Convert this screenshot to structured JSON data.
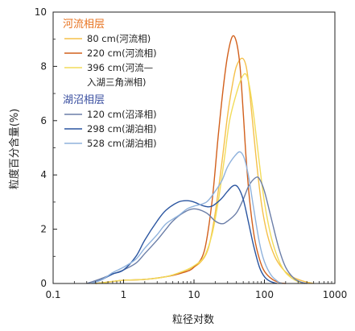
{
  "chart_data": {
    "type": "line",
    "xlabel": "粒径对数",
    "ylabel": "粒度百分含量(%)",
    "x_scale": "log",
    "xlim": [
      0.1,
      1000
    ],
    "ylim": [
      0,
      10
    ],
    "x_ticks": [
      "0.1",
      "1",
      "10",
      "100",
      "1000"
    ],
    "y_ticks": [
      "0",
      "2",
      "4",
      "6",
      "8",
      "10"
    ],
    "grid": false,
    "legend_position": "top-left",
    "legend_groups": [
      {
        "title": "河流相层",
        "color": "#E8731F"
      },
      {
        "title": "湖沼相层",
        "color": "#3A4FA0"
      }
    ],
    "series": [
      {
        "name": "80 cm(河流相)",
        "group": 0,
        "color": "#F5C04A",
        "points": [
          [
            0.4,
            0
          ],
          [
            0.6,
            0.05
          ],
          [
            1,
            0.12
          ],
          [
            2,
            0.15
          ],
          [
            5,
            0.3
          ],
          [
            8,
            0.5
          ],
          [
            12,
            0.75
          ],
          [
            16,
            1.3
          ],
          [
            20,
            2.6
          ],
          [
            25,
            4.5
          ],
          [
            30,
            6.2
          ],
          [
            35,
            7.3
          ],
          [
            40,
            8.0
          ],
          [
            48,
            8.3
          ],
          [
            55,
            8.0
          ],
          [
            62,
            7.0
          ],
          [
            75,
            4.8
          ],
          [
            90,
            3.0
          ],
          [
            110,
            1.8
          ],
          [
            140,
            1.0
          ],
          [
            180,
            0.55
          ],
          [
            230,
            0.3
          ],
          [
            300,
            0.15
          ],
          [
            400,
            0.05
          ],
          [
            500,
            0
          ]
        ]
      },
      {
        "name": "220 cm(河流相)",
        "group": 0,
        "color": "#D2601C",
        "points": [
          [
            0.4,
            0
          ],
          [
            0.6,
            0.05
          ],
          [
            1,
            0.12
          ],
          [
            2,
            0.15
          ],
          [
            4,
            0.25
          ],
          [
            7,
            0.4
          ],
          [
            10,
            0.6
          ],
          [
            14,
            1.2
          ],
          [
            18,
            3.0
          ],
          [
            22,
            5.4
          ],
          [
            26,
            7.2
          ],
          [
            30,
            8.4
          ],
          [
            35,
            9.1
          ],
          [
            40,
            8.9
          ],
          [
            45,
            8.0
          ],
          [
            50,
            6.3
          ],
          [
            55,
            4.6
          ],
          [
            62,
            3.0
          ],
          [
            72,
            1.7
          ],
          [
            85,
            0.9
          ],
          [
            100,
            0.45
          ],
          [
            130,
            0.15
          ],
          [
            170,
            0.02
          ],
          [
            200,
            0
          ]
        ]
      },
      {
        "name": "396 cm(河流—入湖三角洲相)",
        "group": 0,
        "color": "#F2DC5A",
        "points": [
          [
            0.4,
            0
          ],
          [
            0.6,
            0.05
          ],
          [
            1,
            0.12
          ],
          [
            2,
            0.15
          ],
          [
            4,
            0.25
          ],
          [
            7,
            0.45
          ],
          [
            10,
            0.65
          ],
          [
            14,
            1.0
          ],
          [
            18,
            1.8
          ],
          [
            22,
            3.0
          ],
          [
            27,
            4.6
          ],
          [
            32,
            6.0
          ],
          [
            40,
            7.0
          ],
          [
            48,
            7.6
          ],
          [
            55,
            7.7
          ],
          [
            62,
            7.2
          ],
          [
            72,
            6.0
          ],
          [
            85,
            4.4
          ],
          [
            100,
            3.0
          ],
          [
            125,
            1.7
          ],
          [
            160,
            0.85
          ],
          [
            200,
            0.4
          ],
          [
            260,
            0.15
          ],
          [
            330,
            0.03
          ],
          [
            380,
            0
          ]
        ]
      },
      {
        "name": "120 cm(沼泽相)",
        "group": 1,
        "color": "#6B7EA8",
        "points": [
          [
            0.3,
            0
          ],
          [
            0.45,
            0.15
          ],
          [
            0.7,
            0.35
          ],
          [
            1,
            0.5
          ],
          [
            1.5,
            0.75
          ],
          [
            2,
            1.1
          ],
          [
            3,
            1.6
          ],
          [
            4,
            2.0
          ],
          [
            5,
            2.3
          ],
          [
            7,
            2.6
          ],
          [
            10,
            2.75
          ],
          [
            15,
            2.6
          ],
          [
            20,
            2.3
          ],
          [
            25,
            2.2
          ],
          [
            30,
            2.3
          ],
          [
            40,
            2.6
          ],
          [
            50,
            3.1
          ],
          [
            60,
            3.6
          ],
          [
            75,
            3.9
          ],
          [
            85,
            3.85
          ],
          [
            100,
            3.4
          ],
          [
            125,
            2.4
          ],
          [
            160,
            1.3
          ],
          [
            200,
            0.6
          ],
          [
            260,
            0.2
          ],
          [
            330,
            0.05
          ],
          [
            400,
            0
          ]
        ]
      },
      {
        "name": "298 cm(湖泊相)",
        "group": 1,
        "color": "#2A55A0",
        "points": [
          [
            0.35,
            0
          ],
          [
            0.5,
            0.15
          ],
          [
            0.7,
            0.35
          ],
          [
            1,
            0.5
          ],
          [
            1.5,
            1.0
          ],
          [
            2,
            1.6
          ],
          [
            3,
            2.3
          ],
          [
            4,
            2.7
          ],
          [
            6,
            3.0
          ],
          [
            8,
            3.05
          ],
          [
            10,
            3.0
          ],
          [
            14,
            2.85
          ],
          [
            18,
            2.85
          ],
          [
            24,
            3.1
          ],
          [
            30,
            3.4
          ],
          [
            36,
            3.6
          ],
          [
            42,
            3.55
          ],
          [
            50,
            3.1
          ],
          [
            60,
            2.2
          ],
          [
            70,
            1.4
          ],
          [
            85,
            0.6
          ],
          [
            100,
            0.25
          ],
          [
            120,
            0.08
          ],
          [
            150,
            0
          ]
        ]
      },
      {
        "name": "528 cm(湖泊相)",
        "group": 1,
        "color": "#8FB2DC",
        "points": [
          [
            0.35,
            0
          ],
          [
            0.5,
            0.15
          ],
          [
            0.7,
            0.4
          ],
          [
            1,
            0.6
          ],
          [
            1.5,
            0.9
          ],
          [
            2,
            1.3
          ],
          [
            3,
            1.8
          ],
          [
            4,
            2.2
          ],
          [
            6,
            2.5
          ],
          [
            8,
            2.75
          ],
          [
            10,
            2.85
          ],
          [
            15,
            3.0
          ],
          [
            20,
            3.4
          ],
          [
            25,
            3.8
          ],
          [
            30,
            4.3
          ],
          [
            38,
            4.7
          ],
          [
            45,
            4.85
          ],
          [
            52,
            4.6
          ],
          [
            60,
            3.9
          ],
          [
            70,
            2.8
          ],
          [
            85,
            1.5
          ],
          [
            100,
            0.8
          ],
          [
            125,
            0.3
          ],
          [
            160,
            0.05
          ],
          [
            180,
            0
          ]
        ]
      }
    ]
  }
}
